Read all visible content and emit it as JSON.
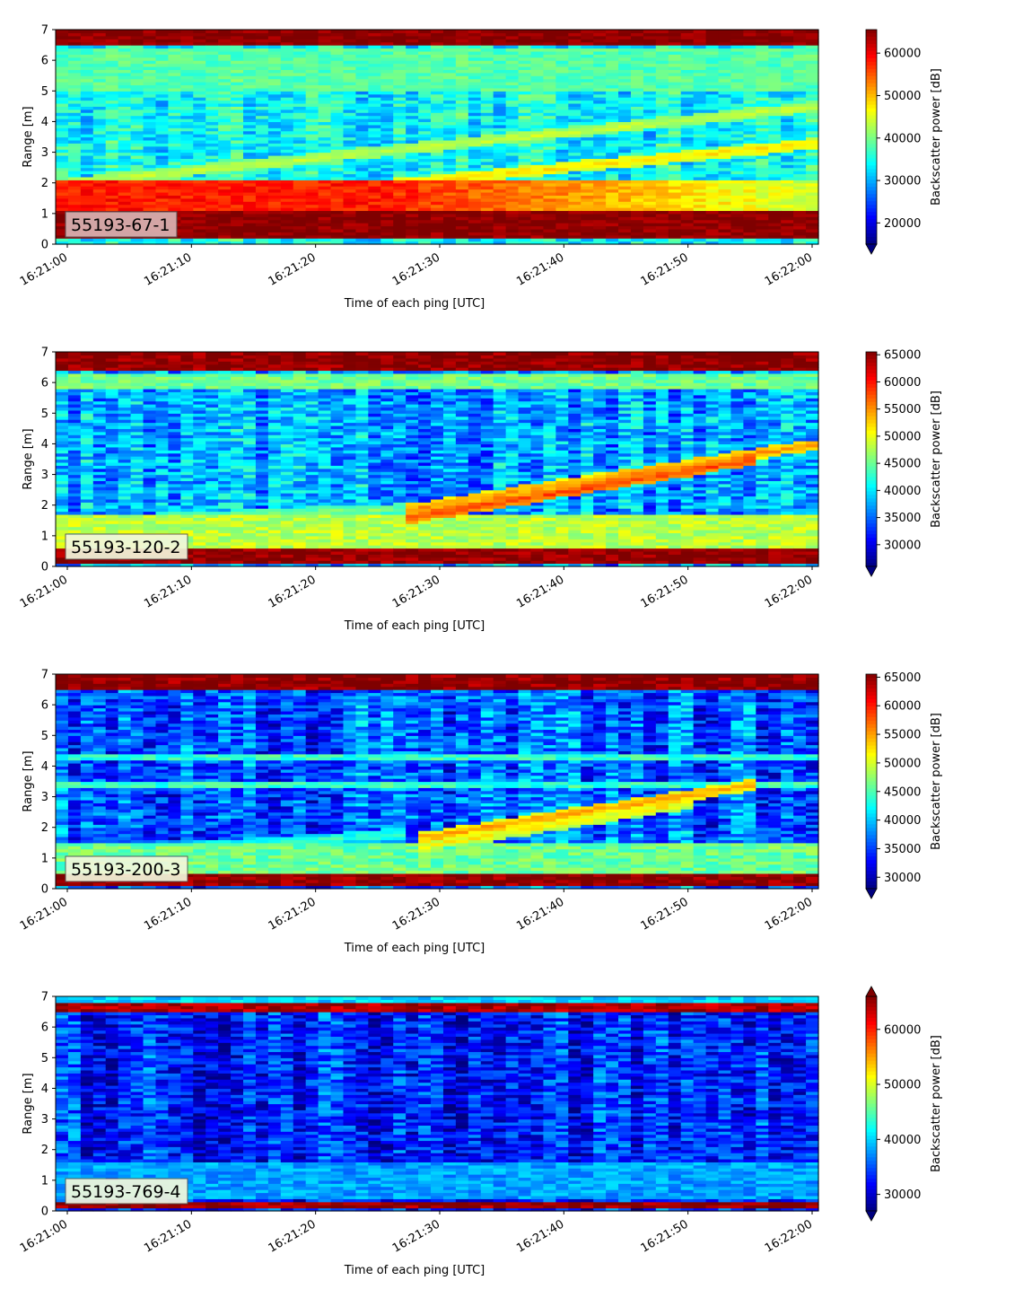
{
  "figure": {
    "x_axis_label": "Time of each ping [UTC]",
    "y_axis_label": "Range [m]",
    "colorbar_label": "Backscatter power [dB]"
  },
  "colormap": [
    "#00007f",
    "#0000ff",
    "#007fff",
    "#00ffff",
    "#7fff7f",
    "#ffff00",
    "#ff7f00",
    "#ff0000",
    "#7f0000"
  ],
  "chart_data": [
    {
      "type": "heatmap",
      "panel_label": "55193-67-1",
      "xlabel": "Time of each ping [UTC]",
      "ylabel": "Range [m]",
      "x_ticks": [
        "16:21:00",
        "16:21:10",
        "16:21:20",
        "16:21:30",
        "16:21:40",
        "16:21:50",
        "16:22:00"
      ],
      "x_range": [
        "16:21:00",
        "16:22:00"
      ],
      "ylim": [
        0,
        7
      ],
      "y_ticks": [
        0,
        1,
        2,
        3,
        4,
        5,
        6,
        7
      ],
      "colorbar": {
        "label": "Backscatter power [dB]",
        "min": 15000,
        "max": 65535,
        "ticks": [
          20000,
          30000,
          40000,
          50000,
          60000
        ],
        "extend": "min"
      },
      "features": [
        {
          "kind": "band",
          "description": "bottom bin",
          "range_m": [
            0.2,
            1.1
          ],
          "level": 65000
        },
        {
          "kind": "band",
          "description": "strong return",
          "range_m": [
            1.1,
            2.1
          ],
          "level": 58000,
          "fades_after": "16:21:25"
        },
        {
          "kind": "band",
          "description": "surface",
          "range_m": [
            6.5,
            7.0
          ],
          "level": 65000
        },
        {
          "kind": "band",
          "description": "near surface",
          "range_m": [
            5.0,
            6.4
          ],
          "level": 38000
        },
        {
          "kind": "track",
          "start": [
            "16:21:00",
            1.95
          ],
          "end": [
            "16:22:00",
            4.5
          ],
          "level": 44000
        },
        {
          "kind": "track",
          "start": [
            "16:21:15",
            1.5
          ],
          "end": [
            "16:22:00",
            3.3
          ],
          "level": 48000
        }
      ]
    },
    {
      "type": "heatmap",
      "panel_label": "55193-120-2",
      "xlabel": "Time of each ping [UTC]",
      "ylabel": "Range [m]",
      "x_ticks": [
        "16:21:00",
        "16:21:10",
        "16:21:20",
        "16:21:30",
        "16:21:40",
        "16:21:50",
        "16:22:00"
      ],
      "x_range": [
        "16:21:00",
        "16:22:00"
      ],
      "ylim": [
        0,
        7
      ],
      "y_ticks": [
        0,
        1,
        2,
        3,
        4,
        5,
        6,
        7
      ],
      "colorbar": {
        "label": "Backscatter power [dB]",
        "min": 26000,
        "max": 65535,
        "ticks": [
          30000,
          35000,
          40000,
          45000,
          50000,
          55000,
          60000,
          65000
        ],
        "extend": "min"
      },
      "features": [
        {
          "kind": "band",
          "description": "bottom bin",
          "range_m": [
            0.1,
            0.55
          ],
          "level": 65000
        },
        {
          "kind": "band",
          "description": "near bottom",
          "range_m": [
            0.6,
            1.7
          ],
          "level": 48000
        },
        {
          "kind": "band",
          "description": "surface",
          "range_m": [
            6.4,
            7.0
          ],
          "level": 65000
        },
        {
          "kind": "band",
          "description": "near surface",
          "range_m": [
            5.8,
            6.3
          ],
          "level": 45000
        },
        {
          "kind": "track",
          "start": [
            "16:21:00",
            1.45
          ],
          "end": [
            "16:21:28",
            1.9
          ],
          "level": 46000
        },
        {
          "kind": "track",
          "start": [
            "16:21:28",
            1.9
          ],
          "end": [
            "16:22:00",
            4.0
          ],
          "level": 55000
        },
        {
          "kind": "track",
          "start": [
            "16:21:28",
            1.6
          ],
          "end": [
            "16:21:55",
            3.5
          ],
          "level": 58000
        }
      ]
    },
    {
      "type": "heatmap",
      "panel_label": "55193-200-3",
      "xlabel": "Time of each ping [UTC]",
      "ylabel": "Range [m]",
      "x_ticks": [
        "16:21:00",
        "16:21:10",
        "16:21:20",
        "16:21:30",
        "16:21:40",
        "16:21:50",
        "16:22:00"
      ],
      "x_range": [
        "16:21:00",
        "16:22:00"
      ],
      "ylim": [
        0,
        7
      ],
      "y_ticks": [
        0,
        1,
        2,
        3,
        4,
        5,
        6,
        7
      ],
      "colorbar": {
        "label": "Backscatter power [dB]",
        "min": 28000,
        "max": 65535,
        "ticks": [
          30000,
          35000,
          40000,
          45000,
          50000,
          55000,
          60000,
          65000
        ],
        "extend": "min"
      },
      "features": [
        {
          "kind": "band",
          "description": "bottom bin",
          "range_m": [
            0.15,
            0.5
          ],
          "level": 65000
        },
        {
          "kind": "band",
          "description": "near bottom",
          "range_m": [
            0.5,
            1.5
          ],
          "level": 46000
        },
        {
          "kind": "band",
          "description": "surface",
          "range_m": [
            6.5,
            7.0
          ],
          "level": 65000
        },
        {
          "kind": "band",
          "description": "line",
          "range_m": [
            4.25,
            4.4
          ],
          "level": 44000
        },
        {
          "kind": "band",
          "description": "line",
          "range_m": [
            3.35,
            3.5
          ],
          "level": 44000
        },
        {
          "kind": "track",
          "start": [
            "16:21:00",
            1.1
          ],
          "end": [
            "16:21:28",
            1.8
          ],
          "level": 44000
        },
        {
          "kind": "track",
          "start": [
            "16:21:29",
            1.7
          ],
          "end": [
            "16:21:55",
            3.4
          ],
          "level": 55000
        },
        {
          "kind": "track",
          "start": [
            "16:21:29",
            1.4
          ],
          "end": [
            "16:21:50",
            2.8
          ],
          "level": 52000
        }
      ]
    },
    {
      "type": "heatmap",
      "panel_label": "55193-769-4",
      "xlabel": "Time of each ping [UTC]",
      "ylabel": "Range [m]",
      "x_ticks": [
        "16:21:00",
        "16:21:10",
        "16:21:20",
        "16:21:30",
        "16:21:40",
        "16:21:50",
        "16:22:00"
      ],
      "x_range": [
        "16:21:00",
        "16:22:00"
      ],
      "ylim": [
        0,
        7
      ],
      "y_ticks": [
        0,
        1,
        2,
        3,
        4,
        5,
        6,
        7
      ],
      "colorbar": {
        "label": "Backscatter power [dB]",
        "min": 27000,
        "max": 66000,
        "ticks": [
          30000,
          40000,
          50000,
          60000
        ],
        "extend": "both"
      },
      "features": [
        {
          "kind": "band",
          "description": "bottom bin",
          "range_m": [
            0.15,
            0.35
          ],
          "level": 65000
        },
        {
          "kind": "band",
          "description": "near bottom",
          "range_m": [
            0.4,
            1.6
          ],
          "level": 38000
        },
        {
          "kind": "band",
          "description": "surface",
          "range_m": [
            6.5,
            6.75
          ],
          "level": 64000
        },
        {
          "kind": "band",
          "description": "top",
          "range_m": [
            6.8,
            7.0
          ],
          "level": 40000
        }
      ]
    }
  ]
}
